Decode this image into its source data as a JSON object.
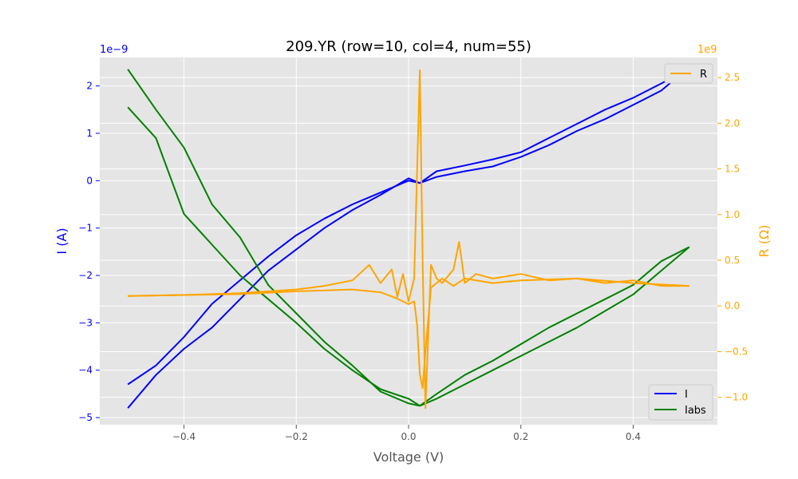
{
  "chart_data": {
    "type": "line",
    "title": "209.YR (row=10, col=4, num=55)",
    "xlabel": "Voltage (V)",
    "ylabel_left": "I (A)",
    "ylabel_right": "R (Ω)",
    "left_offset_text": "1e−9",
    "right_offset_text": "1e9",
    "xlim": [
      -0.55,
      0.55
    ],
    "ylim_left": [
      -5.15,
      2.6
    ],
    "ylim_right": [
      -1.3,
      2.72
    ],
    "x_ticks": [
      -0.4,
      -0.2,
      0.0,
      0.2,
      0.4
    ],
    "x_tick_labels": [
      "−0.4",
      "−0.2",
      "0.0",
      "0.2",
      "0.4"
    ],
    "left_ticks": [
      -5,
      -4,
      -3,
      -2,
      -1,
      0,
      1,
      2
    ],
    "left_tick_labels": [
      "−5",
      "−4",
      "−3",
      "−2",
      "−1",
      "0",
      "1",
      "2"
    ],
    "right_ticks": [
      -1.0,
      -0.5,
      0.0,
      0.5,
      1.0,
      1.5,
      2.0,
      2.5
    ],
    "right_tick_labels": [
      "−1.0",
      "−0.5",
      "0.0",
      "0.5",
      "1.0",
      "1.5",
      "2.0",
      "2.5"
    ],
    "grid": true,
    "legend_left": {
      "placement": "lower-right",
      "entries": [
        "I",
        "Iabs"
      ]
    },
    "legend_right": {
      "placement": "upper-right",
      "entries": [
        "R"
      ]
    },
    "series": [
      {
        "name": "I",
        "axis": "left",
        "color": "#0000ff",
        "x": [
          -0.5,
          -0.45,
          -0.4,
          -0.35,
          -0.3,
          -0.25,
          -0.2,
          -0.15,
          -0.1,
          -0.05,
          0.0,
          0.02,
          0.05,
          0.1,
          0.15,
          0.2,
          0.25,
          0.3,
          0.35,
          0.4,
          0.45,
          0.49
        ],
        "y": [
          -4.8,
          -4.1,
          -3.55,
          -3.1,
          -2.5,
          -1.9,
          -1.45,
          -1.0,
          -0.62,
          -0.3,
          0.05,
          -0.05,
          0.2,
          0.32,
          0.45,
          0.6,
          0.9,
          1.2,
          1.5,
          1.75,
          2.05,
          2.3
        ]
      },
      {
        "name": "I",
        "axis": "left",
        "color": "#0000ff",
        "x": [
          0.49,
          0.45,
          0.4,
          0.35,
          0.3,
          0.25,
          0.2,
          0.15,
          0.1,
          0.05,
          0.02,
          0.0,
          -0.05,
          -0.1,
          -0.15,
          -0.2,
          -0.25,
          -0.3,
          -0.35,
          -0.4,
          -0.45,
          -0.5
        ],
        "y": [
          2.3,
          1.9,
          1.6,
          1.3,
          1.05,
          0.75,
          0.5,
          0.3,
          0.2,
          0.08,
          -0.05,
          0.0,
          -0.25,
          -0.5,
          -0.8,
          -1.15,
          -1.6,
          -2.1,
          -2.6,
          -3.3,
          -3.9,
          -4.3
        ]
      },
      {
        "name": "Iabs",
        "axis": "left",
        "color": "#008000",
        "x": [
          -0.5,
          -0.45,
          -0.4,
          -0.35,
          -0.3,
          -0.25,
          -0.2,
          -0.15,
          -0.1,
          -0.05,
          0.0,
          0.02,
          0.05,
          0.1,
          0.15,
          0.2,
          0.25,
          0.3,
          0.35,
          0.4,
          0.45,
          0.5
        ],
        "y": [
          2.35,
          1.5,
          0.7,
          -0.5,
          -1.2,
          -2.2,
          -2.8,
          -3.4,
          -3.9,
          -4.45,
          -4.7,
          -4.75,
          -4.5,
          -4.1,
          -3.8,
          -3.45,
          -3.1,
          -2.8,
          -2.5,
          -2.2,
          -1.7,
          -1.4
        ]
      },
      {
        "name": "Iabs",
        "axis": "left",
        "color": "#008000",
        "x": [
          0.5,
          0.45,
          0.4,
          0.35,
          0.3,
          0.25,
          0.2,
          0.15,
          0.1,
          0.05,
          0.02,
          0.0,
          -0.05,
          -0.1,
          -0.15,
          -0.2,
          -0.25,
          -0.3,
          -0.35,
          -0.4,
          -0.45,
          -0.5
        ],
        "y": [
          -1.4,
          -1.9,
          -2.4,
          -2.75,
          -3.1,
          -3.4,
          -3.7,
          -4.0,
          -4.3,
          -4.6,
          -4.75,
          -4.6,
          -4.4,
          -4.0,
          -3.55,
          -3.0,
          -2.5,
          -2.0,
          -1.35,
          -0.7,
          0.9,
          1.55
        ]
      },
      {
        "name": "R",
        "axis": "right",
        "color": "#ffa500",
        "x": [
          -0.5,
          -0.4,
          -0.3,
          -0.2,
          -0.15,
          -0.1,
          -0.07,
          -0.05,
          -0.03,
          -0.02,
          -0.01,
          0.0,
          0.01,
          0.02,
          0.025,
          0.03,
          0.04,
          0.05,
          0.06,
          0.08,
          0.09,
          0.1,
          0.12,
          0.15,
          0.2,
          0.25,
          0.3,
          0.35,
          0.4,
          0.45,
          0.5
        ],
        "y": [
          0.11,
          0.12,
          0.14,
          0.18,
          0.22,
          0.28,
          0.45,
          0.25,
          0.4,
          0.1,
          0.35,
          0.05,
          0.3,
          2.58,
          0.5,
          -1.12,
          0.45,
          0.3,
          0.25,
          0.4,
          0.7,
          0.25,
          0.35,
          0.3,
          0.35,
          0.28,
          0.3,
          0.25,
          0.28,
          0.22,
          0.22
        ]
      },
      {
        "name": "R",
        "axis": "right",
        "color": "#ffa500",
        "x": [
          0.5,
          0.4,
          0.3,
          0.2,
          0.15,
          0.1,
          0.08,
          0.06,
          0.04,
          0.03,
          0.025,
          0.02,
          0.015,
          0.01,
          0.0,
          -0.02,
          -0.05,
          -0.1,
          -0.2,
          -0.3,
          -0.4,
          -0.5
        ],
        "y": [
          0.22,
          0.25,
          0.3,
          0.28,
          0.25,
          0.3,
          0.22,
          0.3,
          0.2,
          -0.5,
          -0.9,
          -0.75,
          -0.2,
          0.05,
          0.02,
          0.08,
          0.15,
          0.18,
          0.16,
          0.13,
          0.12,
          0.11
        ]
      }
    ]
  }
}
